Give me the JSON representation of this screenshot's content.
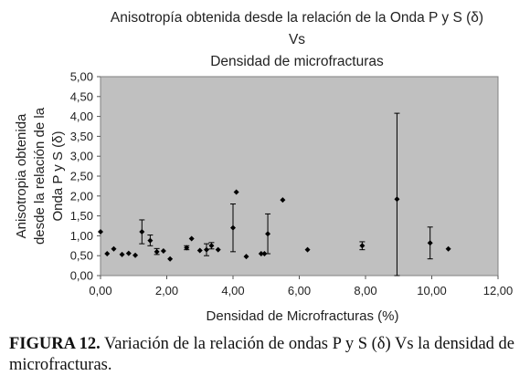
{
  "chart_data": {
    "type": "scatter",
    "title": [
      "Anisotropía obtenida desde la relación de la Onda P y S (δ)",
      "Vs",
      "Densidad de microfracturas"
    ],
    "xlabel": "Densidad de Microfracturas (%)",
    "ylabel": [
      "Anisotropia obtenida",
      "desde la relación de la",
      "Onda P y S (δ)"
    ],
    "xlim": [
      0,
      12
    ],
    "ylim": [
      0,
      5
    ],
    "xticks": [
      0,
      2,
      4,
      6,
      8,
      10,
      12
    ],
    "xtick_labels": [
      "0,00",
      "2,00",
      "4,00",
      "6,00",
      "8,00",
      "10,00",
      "12,00"
    ],
    "yticks": [
      0,
      0.5,
      1,
      1.5,
      2,
      2.5,
      3,
      3.5,
      4,
      4.5,
      5
    ],
    "ytick_labels": [
      "0,00",
      "0,50",
      "1,00",
      "1,50",
      "2,00",
      "2,50",
      "3,00",
      "3,50",
      "4,00",
      "4,50",
      "5,00"
    ],
    "grid": false,
    "legend": "none",
    "colors": {
      "plot_bg": "#c0c0c0",
      "marker": "#000000",
      "frame": "#808080"
    },
    "points": [
      {
        "x": 0.0,
        "y": 1.1
      },
      {
        "x": 0.2,
        "y": 0.55
      },
      {
        "x": 0.4,
        "y": 0.67
      },
      {
        "x": 0.65,
        "y": 0.53
      },
      {
        "x": 0.85,
        "y": 0.56
      },
      {
        "x": 1.05,
        "y": 0.51
      },
      {
        "x": 1.25,
        "y": 1.1,
        "err": [
          0.8,
          1.4
        ]
      },
      {
        "x": 1.5,
        "y": 0.88,
        "err": [
          0.75,
          1.02
        ]
      },
      {
        "x": 1.7,
        "y": 0.6,
        "err": [
          0.53,
          0.68
        ]
      },
      {
        "x": 1.9,
        "y": 0.62
      },
      {
        "x": 2.1,
        "y": 0.42
      },
      {
        "x": 2.6,
        "y": 0.7,
        "err": [
          0.65,
          0.75
        ]
      },
      {
        "x": 2.75,
        "y": 0.93
      },
      {
        "x": 3.0,
        "y": 0.63
      },
      {
        "x": 3.2,
        "y": 0.65,
        "err": [
          0.5,
          0.8
        ]
      },
      {
        "x": 3.35,
        "y": 0.75,
        "err": [
          0.67,
          0.83
        ]
      },
      {
        "x": 3.55,
        "y": 0.65
      },
      {
        "x": 4.0,
        "y": 1.2,
        "err": [
          0.6,
          1.8
        ]
      },
      {
        "x": 4.1,
        "y": 2.1
      },
      {
        "x": 4.4,
        "y": 0.48
      },
      {
        "x": 4.85,
        "y": 0.55
      },
      {
        "x": 4.95,
        "y": 0.55
      },
      {
        "x": 5.05,
        "y": 1.05,
        "err": [
          0.55,
          1.55
        ]
      },
      {
        "x": 5.5,
        "y": 1.9
      },
      {
        "x": 6.25,
        "y": 0.65
      },
      {
        "x": 7.9,
        "y": 0.75,
        "err": [
          0.65,
          0.85
        ]
      },
      {
        "x": 8.95,
        "y": 1.92,
        "err": [
          0.0,
          4.08
        ]
      },
      {
        "x": 9.95,
        "y": 0.82,
        "err": [
          0.42,
          1.22
        ]
      },
      {
        "x": 10.5,
        "y": 0.67
      }
    ]
  },
  "caption": {
    "label": "FIGURA 12.",
    "text": " Variación de la relación de ondas P y S (δ) Vs la densidad de microfracturas."
  }
}
